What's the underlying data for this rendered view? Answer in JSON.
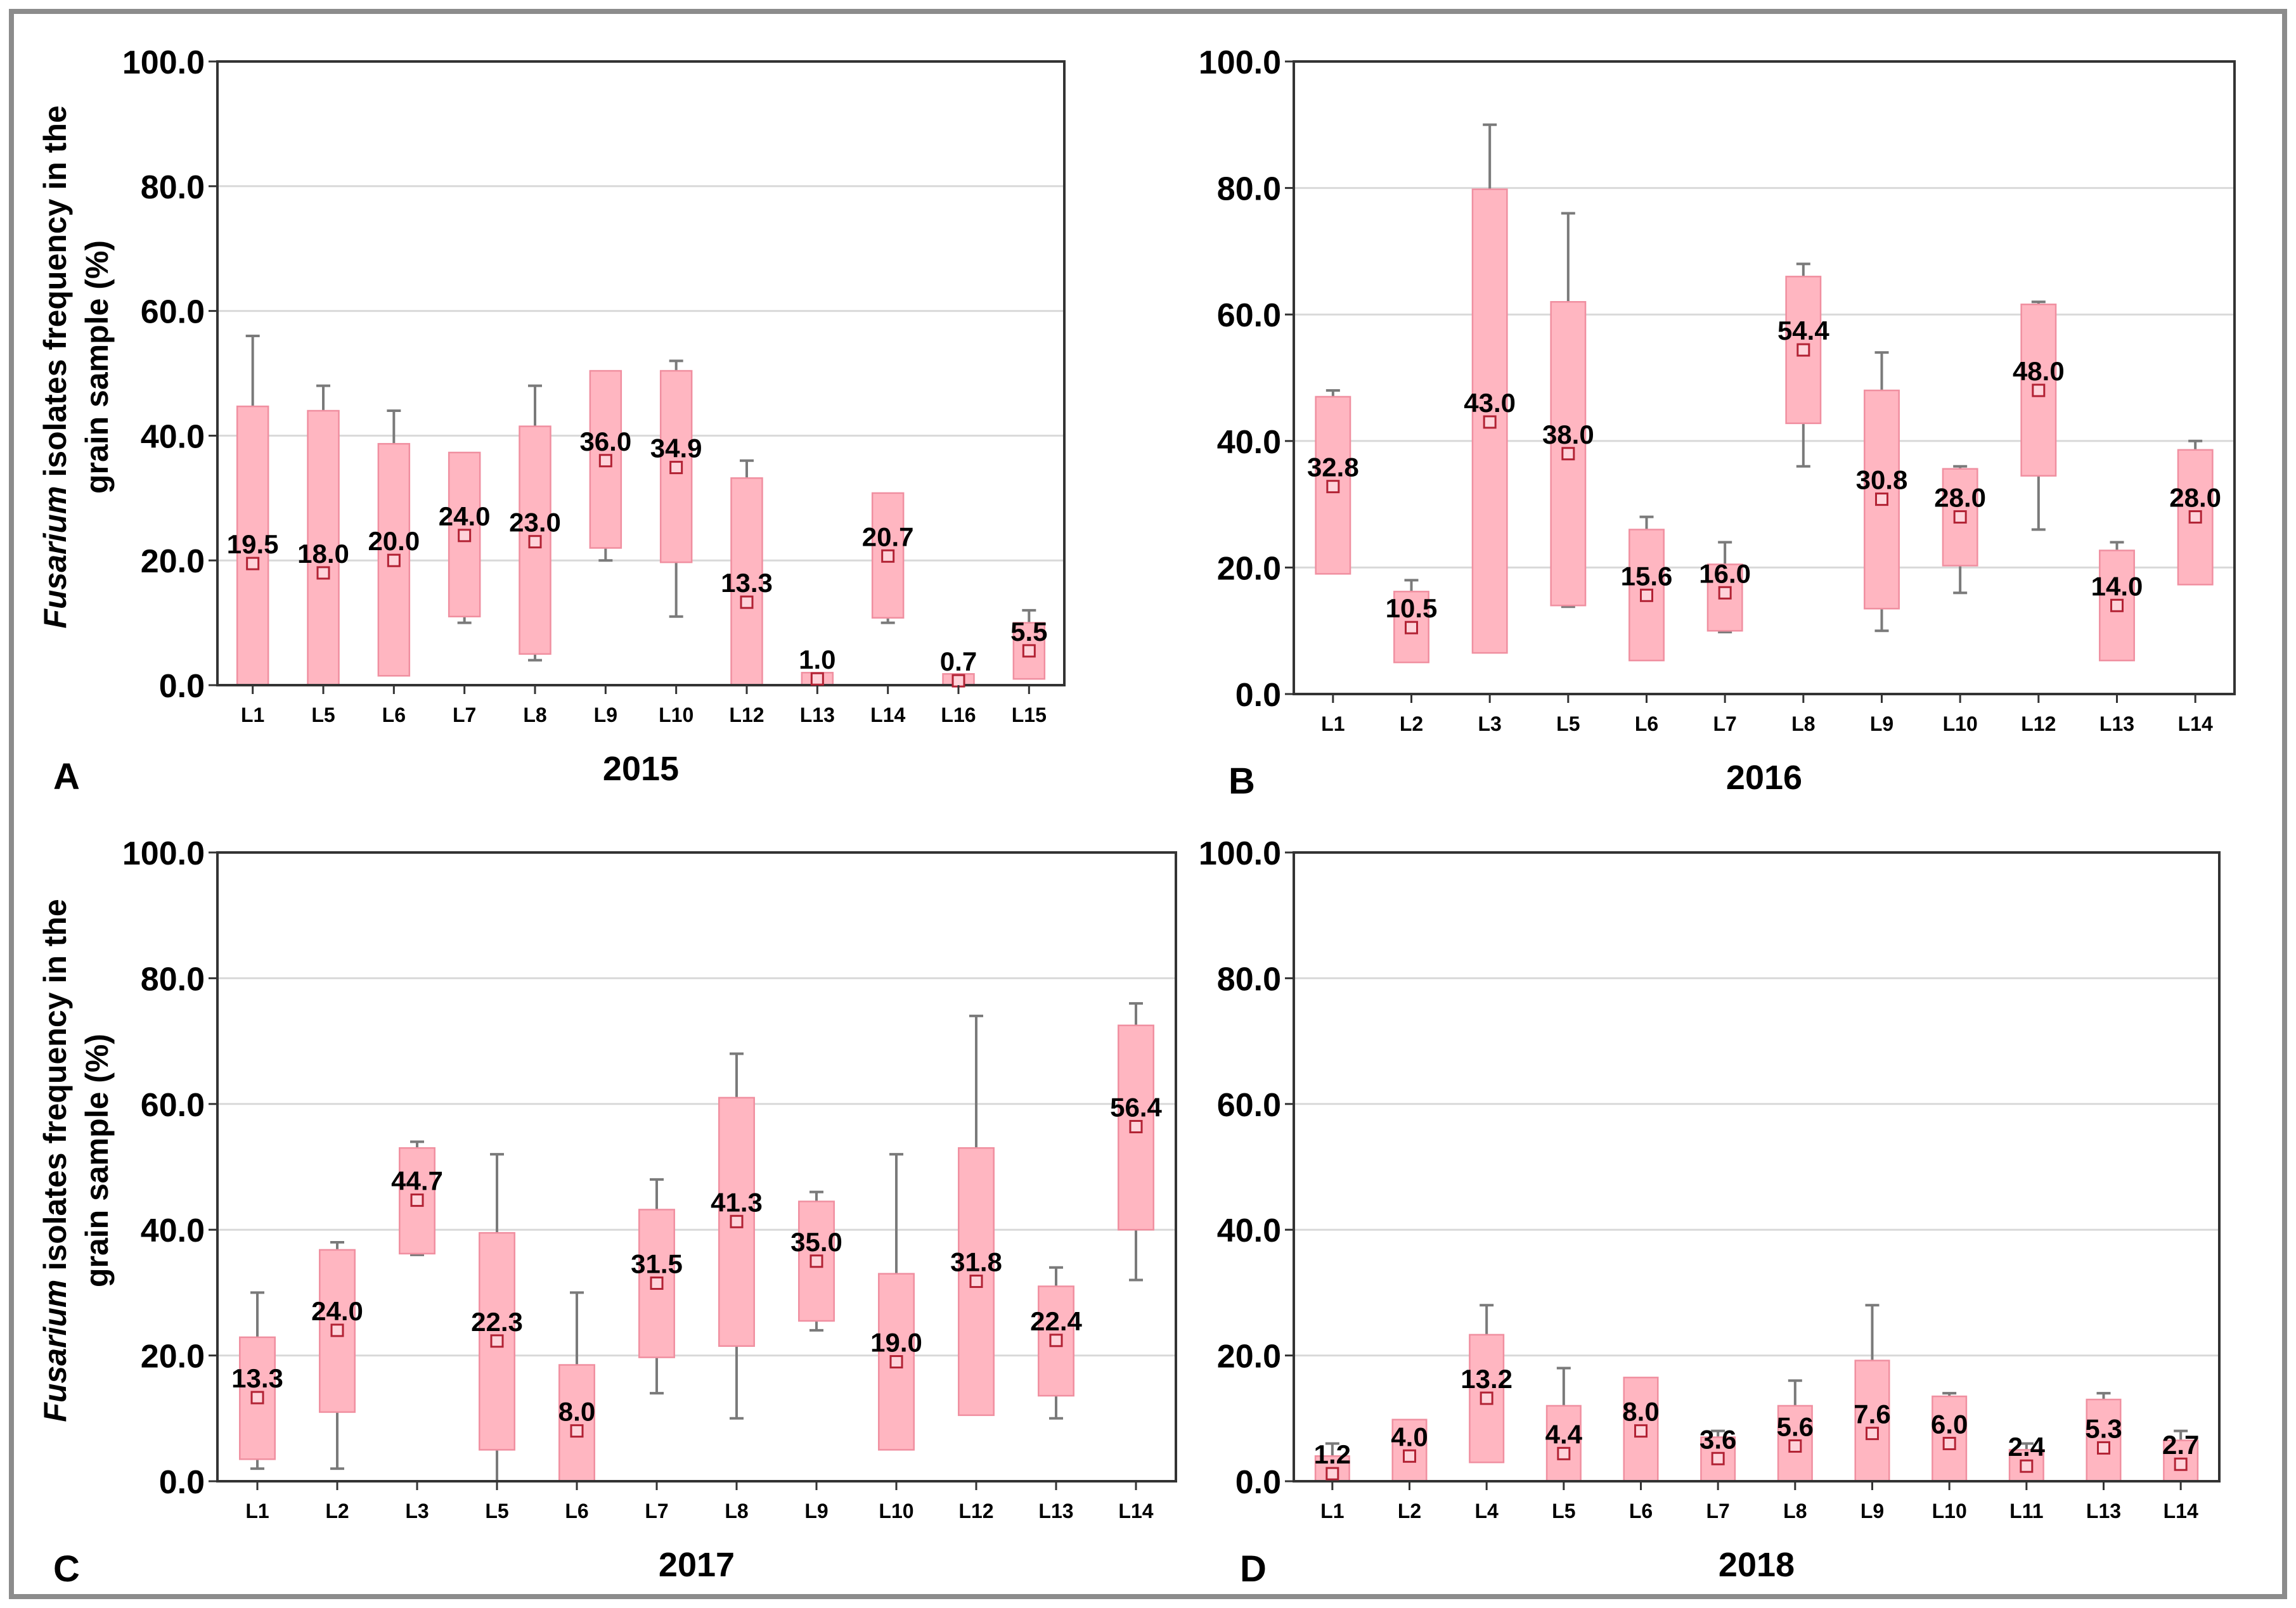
{
  "colors": {
    "box_fill": "#FFB6C1",
    "box_edge": "#F08FA0",
    "whisker": "#7A7A7A",
    "mean_marker": "#B22234",
    "grid": "#D9D9D9",
    "figure_border": "#8C8C8C"
  },
  "chart_data": [
    {
      "panel": "A",
      "type": "box",
      "xlabel": "2015",
      "ylabel": {
        "italic": "Fusarium",
        "line1": "isolates frequency in the",
        "line2": "grain sample (%)"
      },
      "ylim": [
        0,
        100
      ],
      "yticks": [
        "0.0",
        "20.0",
        "40.0",
        "60.0",
        "80.0",
        "100.0"
      ],
      "grid": true,
      "categories": [
        "L1",
        "L5",
        "L6",
        "L7",
        "L8",
        "L9",
        "L10",
        "L12",
        "L13",
        "L14",
        "L16",
        "L15"
      ],
      "mean": [
        19.5,
        18.0,
        20.0,
        24.0,
        23.0,
        36.0,
        34.9,
        13.3,
        1.0,
        20.7,
        0.7,
        5.5
      ],
      "mean_labels": [
        "19.5",
        "18.0",
        "20.0",
        "24.0",
        "23.0",
        "36.0",
        "34.9",
        "13.3",
        "1.0",
        "20.7",
        "0.7",
        "5.5"
      ],
      "q1": [
        0,
        0,
        1.5,
        11,
        5,
        22,
        19.7,
        0,
        0,
        10.8,
        0,
        1
      ],
      "q3": [
        44.7,
        44,
        38.7,
        37.3,
        41.5,
        50.4,
        50.4,
        33.2,
        2,
        30.8,
        1.8,
        10
      ],
      "whisker_low": [
        0,
        0,
        1.5,
        10,
        4,
        20,
        11,
        0,
        0,
        10,
        0,
        1
      ],
      "whisker_high": [
        56,
        48,
        44,
        37.3,
        48,
        50.4,
        52,
        36,
        2,
        30.8,
        1.8,
        12
      ]
    },
    {
      "panel": "B",
      "type": "box",
      "xlabel": "2016",
      "ylim": [
        0,
        100
      ],
      "yticks": [
        "0.0",
        "20.0",
        "40.0",
        "60.0",
        "80.0",
        "100.0"
      ],
      "grid": true,
      "categories": [
        "L1",
        "L2",
        "L3",
        "L5",
        "L6",
        "L7",
        "L8",
        "L9",
        "L10",
        "L12",
        "L13",
        "L14"
      ],
      "mean": [
        32.8,
        10.5,
        43.0,
        38.0,
        15.6,
        16.0,
        54.4,
        30.8,
        28.0,
        48.0,
        14.0,
        28.0
      ],
      "mean_labels": [
        "32.8",
        "10.5",
        "43.0",
        "38.0",
        "15.6",
        "16.0",
        "54.4",
        "30.8",
        "28.0",
        "48.0",
        "14.0",
        "28.0"
      ],
      "q1": [
        19,
        5,
        6.5,
        14,
        5.3,
        10,
        42.8,
        13.5,
        20.3,
        34.5,
        5.3,
        17.3
      ],
      "q3": [
        47,
        16.2,
        79.8,
        62,
        26,
        20.5,
        66,
        48,
        35.6,
        61.6,
        22.7,
        38.6
      ],
      "whisker_low": [
        19,
        5,
        6.5,
        13.8,
        5.3,
        9.8,
        36,
        10,
        16,
        26,
        5.3,
        17.3
      ],
      "whisker_high": [
        48,
        18,
        90,
        76,
        28,
        24,
        68,
        54,
        36,
        62,
        24,
        40
      ]
    },
    {
      "panel": "C",
      "type": "box",
      "xlabel": "2017",
      "ylabel": {
        "italic": "Fusarium",
        "line1": "isolates frequency in the",
        "line2": "grain sample (%)"
      },
      "ylim": [
        0,
        100
      ],
      "yticks": [
        "0.0",
        "20.0",
        "40.0",
        "60.0",
        "80.0",
        "100.0"
      ],
      "grid": true,
      "categories": [
        "L1",
        "L2",
        "L3",
        "L5",
        "L6",
        "L7",
        "L8",
        "L9",
        "L10",
        "L12",
        "L13",
        "L14"
      ],
      "mean": [
        13.3,
        24.0,
        44.7,
        22.3,
        8.0,
        31.5,
        41.3,
        35.0,
        19.0,
        31.8,
        22.4,
        56.4
      ],
      "mean_labels": [
        "13.3",
        "24.0",
        "44.7",
        "22.3",
        "8.0",
        "31.5",
        "41.3",
        "35.0",
        "19.0",
        "31.8",
        "22.4",
        "56.4"
      ],
      "q1": [
        3.5,
        11,
        36.2,
        5,
        0,
        19.7,
        21.5,
        25.5,
        5,
        10.5,
        13.6,
        40
      ],
      "q3": [
        22.9,
        36.8,
        53,
        39.5,
        18.5,
        43.2,
        61,
        44.5,
        33,
        53,
        31,
        72.5
      ],
      "whisker_low": [
        2,
        2,
        36,
        0,
        0,
        14,
        10,
        24,
        5,
        10.5,
        10,
        32
      ],
      "whisker_high": [
        30,
        38,
        54,
        52,
        30,
        48,
        68,
        46,
        52,
        74,
        34,
        76
      ]
    },
    {
      "panel": "D",
      "type": "box",
      "xlabel": "2018",
      "ylim": [
        0,
        100
      ],
      "yticks": [
        "0.0",
        "20.0",
        "40.0",
        "60.0",
        "80.0",
        "100.0"
      ],
      "grid": true,
      "categories": [
        "L1",
        "L2",
        "L4",
        "L5",
        "L6",
        "L7",
        "L8",
        "L9",
        "L10",
        "L11",
        "L13",
        "L14"
      ],
      "mean": [
        1.2,
        4.0,
        13.2,
        4.4,
        8.0,
        3.6,
        5.6,
        7.6,
        6.0,
        2.4,
        5.3,
        2.7
      ],
      "mean_labels": [
        "1.2",
        "4.0",
        "13.2",
        "4.4",
        "8.0",
        "3.6",
        "5.6",
        "7.6",
        "6.0",
        "2.4",
        "5.3",
        "2.7"
      ],
      "q1": [
        0,
        0,
        3,
        0,
        0,
        0,
        0,
        0,
        0,
        0,
        0,
        0
      ],
      "q3": [
        4,
        9.8,
        23.3,
        12,
        16.5,
        7,
        12,
        19.2,
        13.5,
        5,
        13,
        6.5
      ],
      "whisker_low": [
        0,
        0,
        3,
        0,
        0,
        0,
        0,
        0,
        0,
        0,
        0,
        0
      ],
      "whisker_high": [
        6,
        9.8,
        28,
        18,
        16.5,
        8,
        16,
        28,
        14,
        6,
        14,
        8
      ]
    }
  ]
}
